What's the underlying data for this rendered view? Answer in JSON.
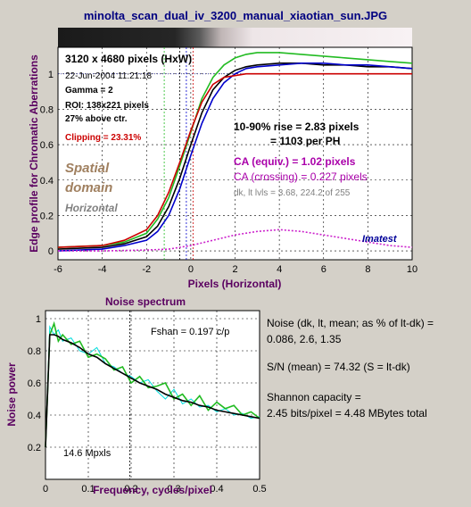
{
  "title": "minolta_scan_dual_iv_3200_manual_xiaotian_sun.JPG",
  "colors": {
    "background": "#d4d0c8",
    "title_color": "#000080",
    "axis_label_color": "#5a0060",
    "red": "#cc0000",
    "green": "#22bb22",
    "blue": "#0000cc",
    "black": "#000000",
    "magenta": "#cc22cc",
    "ca_magenta": "#aa00aa",
    "tan": "#a08060",
    "gray": "#808080",
    "cyan": "#00dddd",
    "imatest_blue": "#000099"
  },
  "edge": {
    "info": {
      "dims": "3120 x 4680 pixels (HxW)",
      "date": "22-Jun-2004 11:21:18",
      "gamma": "Gamma = 2",
      "roi": "ROI: 138x221 pixels",
      "above": "27% above ctr.",
      "clipping": "Clipping = 23.31%"
    },
    "spatial_label_1": "Spatial",
    "spatial_label_2": "domain",
    "horizontal_label": "Horizontal",
    "rise_line_1": "10-90% rise = 2.83 pixels",
    "rise_line_2": "= 1103 per PH",
    "ca_equiv": "CA (equiv.) = 1.02 pixels",
    "ca_crossing": "CA (crossing) = 0.227 pixels",
    "levels": "dk, lt lvls = 3.68, 224.2 of 255",
    "brand": "Imatest",
    "ylabel": "Edge profile for Chromatic Aberrations",
    "xlabel": "Pixels (Horizontal)"
  },
  "noise": {
    "title": "Noise spectrum",
    "xlabel": "Frequency, cycles/pixel",
    "ylabel": "Noise power",
    "fshan": "Fshan = 0.197 c/p",
    "mpxls": "14.6 Mpxls",
    "stats_1": "Noise (dk, lt, mean; as % of lt-dk) =",
    "stats_2": "0.086,  2.6,  1.35",
    "sn": "S/N (mean) = 74.32  (S = lt-dk)",
    "shannon_1": "Shannon capacity =",
    "shannon_2": "2.45 bits/pixel = 4.48 MBytes total"
  },
  "chart_data": [
    {
      "type": "line",
      "xlabel": "Pixels (Horizontal)",
      "ylabel": "Edge profile for Chromatic Aberrations",
      "xlim": [
        -6,
        10
      ],
      "ylim": [
        -0.05,
        1.15
      ],
      "xticks": [
        -6,
        -4,
        -2,
        0,
        2,
        4,
        6,
        8,
        10
      ],
      "yticks": [
        0,
        0.2,
        0.4,
        0.6,
        0.8,
        1
      ],
      "grid": true,
      "series": [
        {
          "color": "green",
          "x": [
            -6,
            -4,
            -3,
            -2,
            -1.5,
            -1,
            -0.5,
            0,
            0.5,
            1,
            1.5,
            2,
            2.5,
            3,
            4,
            5,
            6,
            7,
            8,
            9,
            10
          ],
          "y": [
            0.02,
            0.03,
            0.05,
            0.1,
            0.18,
            0.3,
            0.48,
            0.67,
            0.86,
            0.98,
            1.05,
            1.09,
            1.11,
            1.12,
            1.12,
            1.11,
            1.1,
            1.09,
            1.08,
            1.07,
            1.06
          ]
        },
        {
          "color": "black",
          "x": [
            -6,
            -4,
            -3,
            -2,
            -1.5,
            -1,
            -0.5,
            0,
            0.5,
            1,
            1.5,
            2,
            2.5,
            3,
            4,
            5,
            6,
            7,
            8,
            9,
            10
          ],
          "y": [
            0.01,
            0.02,
            0.04,
            0.08,
            0.14,
            0.25,
            0.41,
            0.6,
            0.78,
            0.91,
            0.98,
            1.02,
            1.04,
            1.05,
            1.06,
            1.06,
            1.05,
            1.05,
            1.04,
            1.04,
            1.03
          ]
        },
        {
          "color": "blue",
          "x": [
            -6,
            -4,
            -3,
            -2,
            -1.5,
            -1,
            -0.5,
            0,
            0.5,
            1,
            1.5,
            2,
            2.5,
            3,
            4,
            5,
            6,
            7,
            8,
            9,
            10
          ],
          "y": [
            0.0,
            0.01,
            0.03,
            0.06,
            0.11,
            0.2,
            0.35,
            0.54,
            0.72,
            0.86,
            0.95,
            1.0,
            1.03,
            1.04,
            1.05,
            1.06,
            1.06,
            1.05,
            1.05,
            1.04,
            1.03
          ]
        },
        {
          "color": "red",
          "x": [
            -6,
            -4,
            -3,
            -2,
            -1.5,
            -1,
            -0.5,
            0,
            0.5,
            1,
            1.5,
            2,
            2.5,
            3,
            4,
            5,
            6,
            7,
            8,
            9,
            10
          ],
          "y": [
            0.02,
            0.03,
            0.06,
            0.12,
            0.2,
            0.33,
            0.5,
            0.68,
            0.84,
            0.94,
            0.98,
            0.99,
            1.0,
            1.0,
            1.0,
            1.0,
            1.0,
            1.0,
            1.0,
            1.0,
            1.0
          ]
        },
        {
          "color": "magenta",
          "dashed": true,
          "x": [
            -6,
            -4,
            -2,
            -1,
            0,
            1,
            2,
            3,
            4,
            5,
            6,
            7,
            8,
            9,
            10
          ],
          "y": [
            0.0,
            0.0,
            0.005,
            0.01,
            0.03,
            0.06,
            0.09,
            0.11,
            0.12,
            0.11,
            0.09,
            0.07,
            0.05,
            0.03,
            0.02
          ]
        }
      ],
      "vlines": [
        {
          "x": -1.2,
          "color": "green"
        },
        {
          "x": -0.5,
          "color": "black"
        },
        {
          "x": -0.2,
          "color": "blue"
        },
        {
          "x": 0.1,
          "color": "red"
        }
      ],
      "hline_dotted": 1.0
    },
    {
      "type": "line",
      "title": "Noise spectrum",
      "xlabel": "Frequency, cycles/pixel",
      "ylabel": "Noise power",
      "xlim": [
        0,
        0.5
      ],
      "ylim": [
        0,
        1.05
      ],
      "xticks": [
        0,
        0.1,
        0.2,
        0.3,
        0.4,
        0.5
      ],
      "yticks": [
        0.2,
        0.4,
        0.6,
        0.8,
        1
      ],
      "grid": true,
      "series": [
        {
          "color": "cyan",
          "x": [
            0.0,
            0.01,
            0.02,
            0.03,
            0.04,
            0.06,
            0.08,
            0.1,
            0.12,
            0.14,
            0.16,
            0.18,
            0.2,
            0.22,
            0.24,
            0.26,
            0.28,
            0.3,
            0.32,
            0.34,
            0.36,
            0.38,
            0.4,
            0.42,
            0.44,
            0.46,
            0.48,
            0.5
          ],
          "y": [
            0.2,
            0.95,
            0.9,
            0.93,
            0.86,
            0.88,
            0.8,
            0.78,
            0.82,
            0.72,
            0.7,
            0.66,
            0.64,
            0.6,
            0.62,
            0.55,
            0.5,
            0.56,
            0.47,
            0.5,
            0.45,
            0.46,
            0.42,
            0.44,
            0.4,
            0.41,
            0.38,
            0.39
          ]
        },
        {
          "color": "green",
          "x": [
            0.0,
            0.01,
            0.02,
            0.03,
            0.04,
            0.06,
            0.08,
            0.1,
            0.12,
            0.14,
            0.16,
            0.18,
            0.2,
            0.22,
            0.24,
            0.26,
            0.28,
            0.3,
            0.32,
            0.34,
            0.36,
            0.38,
            0.4,
            0.42,
            0.44,
            0.46,
            0.48,
            0.5
          ],
          "y": [
            0.2,
            0.9,
            0.97,
            0.86,
            0.9,
            0.84,
            0.86,
            0.76,
            0.78,
            0.75,
            0.68,
            0.7,
            0.6,
            0.64,
            0.57,
            0.58,
            0.6,
            0.5,
            0.53,
            0.46,
            0.52,
            0.43,
            0.48,
            0.44,
            0.46,
            0.4,
            0.42,
            0.38
          ]
        },
        {
          "color": "black",
          "x": [
            0.0,
            0.01,
            0.02,
            0.03,
            0.04,
            0.06,
            0.08,
            0.1,
            0.12,
            0.14,
            0.16,
            0.18,
            0.2,
            0.22,
            0.24,
            0.26,
            0.28,
            0.3,
            0.32,
            0.34,
            0.36,
            0.38,
            0.4,
            0.42,
            0.44,
            0.46,
            0.48,
            0.5
          ],
          "y": [
            0.2,
            0.9,
            0.9,
            0.89,
            0.87,
            0.85,
            0.82,
            0.78,
            0.76,
            0.72,
            0.69,
            0.66,
            0.63,
            0.6,
            0.58,
            0.56,
            0.53,
            0.51,
            0.49,
            0.48,
            0.46,
            0.45,
            0.43,
            0.42,
            0.41,
            0.4,
            0.39,
            0.38
          ]
        }
      ],
      "vlines": [
        {
          "x": 0.197,
          "color": "black",
          "dashed": true
        }
      ]
    }
  ]
}
